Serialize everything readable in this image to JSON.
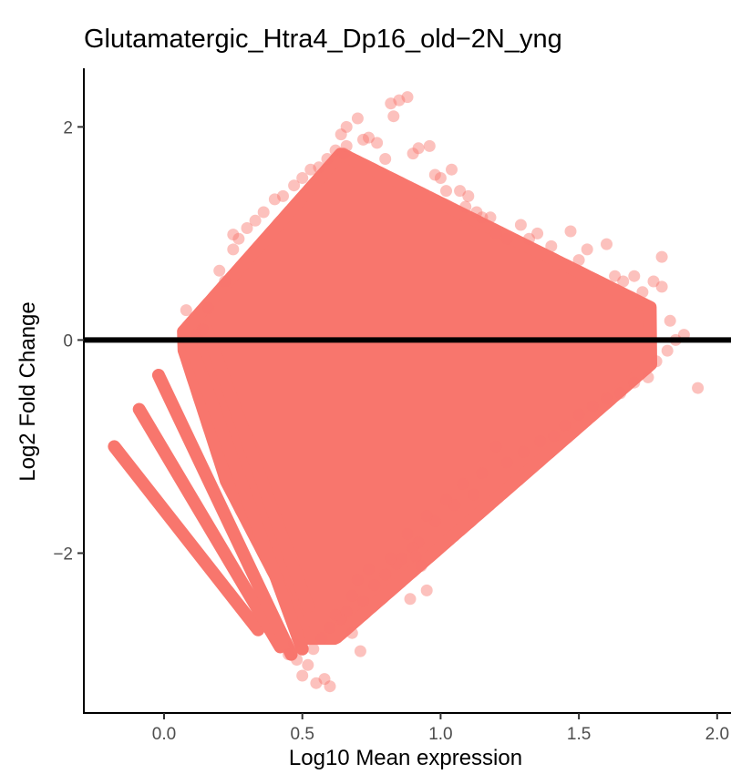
{
  "chart_data": {
    "type": "scatter",
    "title": "Glutamatergic_Htra4_Dp16_old−2N_yng",
    "xlabel": "Log10 Mean expression",
    "ylabel": "Log2 Fold Change",
    "xlim": [
      -0.29,
      2.05
    ],
    "ylim": [
      -3.5,
      2.55
    ],
    "x_ticks": [
      {
        "value": 0.0,
        "label": "0.0"
      },
      {
        "value": 0.5,
        "label": "0.5"
      },
      {
        "value": 1.0,
        "label": "1.0"
      },
      {
        "value": 1.5,
        "label": "1.5"
      },
      {
        "value": 2.0,
        "label": "2.0"
      }
    ],
    "y_ticks": [
      {
        "value": -2,
        "label": "−2"
      },
      {
        "value": 0,
        "label": "0"
      },
      {
        "value": 2,
        "label": "2"
      }
    ],
    "reference_line": {
      "y": 0,
      "color": "#000000"
    },
    "point_color": "#F8766D",
    "point_opacity": 0.45,
    "grid": false,
    "legend": "none",
    "series": [
      {
        "points": [
          [
            0.08,
            0.28
          ],
          [
            0.12,
            0.05
          ],
          [
            0.14,
            0.1
          ],
          [
            0.16,
            0.3
          ],
          [
            0.2,
            0.65
          ],
          [
            0.22,
            0.55
          ],
          [
            0.25,
            0.85
          ],
          [
            0.25,
            0.99
          ],
          [
            0.27,
            0.95
          ],
          [
            0.3,
            1.05
          ],
          [
            0.33,
            1.12
          ],
          [
            0.36,
            1.2
          ],
          [
            0.4,
            1.32
          ],
          [
            0.43,
            1.35
          ],
          [
            0.47,
            1.45
          ],
          [
            0.5,
            1.52
          ],
          [
            0.53,
            1.6
          ],
          [
            0.56,
            1.62
          ],
          [
            0.59,
            1.7
          ],
          [
            0.62,
            1.78
          ],
          [
            0.64,
            1.93
          ],
          [
            0.65,
            1.75
          ],
          [
            0.66,
            2.0
          ],
          [
            0.66,
            1.82
          ],
          [
            0.7,
            2.08
          ],
          [
            0.72,
            1.88
          ],
          [
            0.74,
            1.9
          ],
          [
            0.77,
            1.85
          ],
          [
            0.8,
            1.7
          ],
          [
            0.82,
            2.22
          ],
          [
            0.85,
            2.25
          ],
          [
            0.88,
            2.28
          ],
          [
            0.83,
            2.1
          ],
          [
            0.9,
            1.75
          ],
          [
            0.92,
            1.8
          ],
          [
            0.96,
            1.82
          ],
          [
            0.98,
            1.55
          ],
          [
            1.0,
            1.52
          ],
          [
            1.02,
            1.4
          ],
          [
            1.04,
            1.6
          ],
          [
            1.07,
            1.4
          ],
          [
            1.09,
            1.25
          ],
          [
            1.1,
            1.35
          ],
          [
            1.13,
            1.2
          ],
          [
            1.15,
            1.15
          ],
          [
            1.18,
            1.15
          ],
          [
            1.2,
            1.0
          ],
          [
            1.24,
            0.95
          ],
          [
            1.29,
            1.08
          ],
          [
            1.32,
            0.95
          ],
          [
            1.35,
            1.0
          ],
          [
            1.4,
            0.88
          ],
          [
            1.47,
            1.02
          ],
          [
            1.5,
            0.75
          ],
          [
            1.53,
            0.85
          ],
          [
            1.6,
            0.9
          ],
          [
            1.63,
            0.6
          ],
          [
            1.66,
            0.55
          ],
          [
            1.7,
            0.6
          ],
          [
            1.73,
            0.45
          ],
          [
            1.77,
            0.55
          ],
          [
            1.8,
            0.78
          ],
          [
            1.8,
            0.5
          ],
          [
            1.83,
            0.18
          ],
          [
            1.88,
            0.05
          ],
          [
            1.93,
            -0.45
          ],
          [
            1.85,
            0.0
          ],
          [
            1.82,
            -0.1
          ],
          [
            1.78,
            -0.2
          ],
          [
            1.75,
            -0.35
          ],
          [
            1.7,
            -0.4
          ],
          [
            1.65,
            -0.5
          ],
          [
            1.6,
            -0.55
          ],
          [
            1.55,
            -0.62
          ],
          [
            1.5,
            -0.7
          ],
          [
            1.45,
            -0.8
          ],
          [
            1.41,
            -0.9
          ],
          [
            1.36,
            -0.95
          ],
          [
            1.3,
            -1.05
          ],
          [
            1.24,
            -1.15
          ],
          [
            1.2,
            -1.0
          ],
          [
            1.15,
            -1.25
          ],
          [
            1.12,
            -1.45
          ],
          [
            1.08,
            -1.35
          ],
          [
            1.05,
            -1.55
          ],
          [
            1.02,
            -1.5
          ],
          [
            0.98,
            -1.7
          ],
          [
            0.95,
            -1.65
          ],
          [
            0.92,
            -1.9
          ],
          [
            0.9,
            -1.95
          ],
          [
            0.88,
            -1.82
          ],
          [
            0.86,
            -2.05
          ],
          [
            0.84,
            -2.1
          ],
          [
            0.82,
            -2.05
          ],
          [
            0.8,
            -2.2
          ],
          [
            0.76,
            -2.3
          ],
          [
            0.74,
            -2.15
          ],
          [
            0.72,
            -2.45
          ],
          [
            0.7,
            -2.25
          ],
          [
            0.68,
            -2.4
          ],
          [
            0.66,
            -2.55
          ],
          [
            0.64,
            -2.62
          ],
          [
            0.62,
            -2.58
          ],
          [
            0.6,
            -2.7
          ],
          [
            0.57,
            -2.8
          ],
          [
            0.54,
            -2.9
          ],
          [
            0.52,
            -3.05
          ],
          [
            0.5,
            -3.15
          ],
          [
            0.55,
            -3.22
          ],
          [
            0.58,
            -3.18
          ],
          [
            0.6,
            -3.25
          ],
          [
            0.48,
            -3.0
          ],
          [
            0.47,
            -2.85
          ],
          [
            0.45,
            -2.95
          ],
          [
            0.71,
            -2.92
          ],
          [
            0.68,
            -2.75
          ],
          [
            0.89,
            -2.43
          ],
          [
            0.95,
            -2.35
          ],
          [
            0.93,
            -2.12
          ],
          [
            0.91,
            -2.03
          ]
        ]
      }
    ]
  }
}
